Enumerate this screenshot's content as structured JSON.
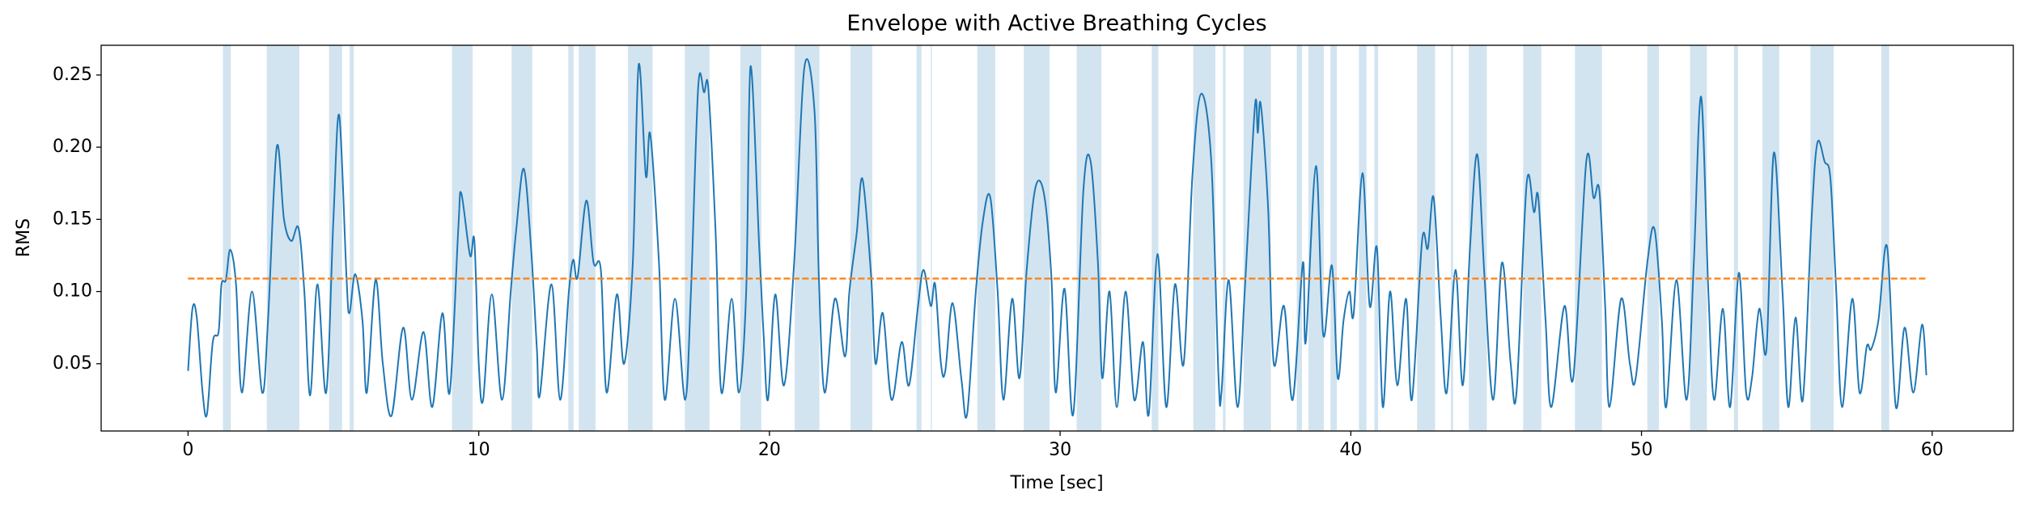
{
  "chart_data": {
    "type": "line",
    "title": "Envelope with Active Breathing Cycles",
    "x_label": "Time [sec]",
    "y_label": "RMS",
    "color": "#1f77b4",
    "x": [
      0.0,
      0.15,
      0.3,
      0.5,
      0.65,
      0.85,
      1.05,
      1.15,
      1.3,
      1.45,
      1.65,
      1.85,
      2.2,
      2.55,
      2.75,
      3.05,
      3.3,
      3.55,
      3.8,
      4.0,
      4.2,
      4.45,
      4.75,
      5.0,
      5.2,
      5.45,
      5.55,
      5.75,
      6.0,
      6.15,
      6.45,
      6.7,
      7.0,
      7.4,
      7.7,
      8.1,
      8.4,
      8.75,
      9.0,
      9.3,
      9.4,
      9.7,
      9.85,
      10.0,
      10.15,
      10.45,
      10.8,
      11.1,
      11.3,
      11.55,
      11.8,
      12.0,
      12.1,
      12.5,
      12.8,
      13.1,
      13.25,
      13.4,
      13.7,
      13.95,
      14.2,
      14.4,
      14.75,
      15.0,
      15.3,
      15.5,
      15.75,
      15.9,
      16.2,
      16.4,
      16.75,
      17.1,
      17.3,
      17.55,
      17.75,
      17.9,
      18.15,
      18.35,
      18.7,
      18.95,
      19.2,
      19.35,
      19.65,
      19.8,
      19.95,
      20.2,
      20.5,
      20.85,
      21.2,
      21.55,
      21.7,
      21.9,
      22.25,
      22.6,
      22.75,
      23.0,
      23.2,
      23.5,
      23.65,
      23.9,
      24.2,
      24.55,
      24.8,
      25.1,
      25.3,
      25.55,
      25.7,
      25.9,
      26.05,
      26.3,
      26.6,
      26.8,
      27.1,
      27.35,
      27.6,
      27.85,
      28.05,
      28.35,
      28.6,
      28.85,
      29.15,
      29.45,
      29.7,
      29.85,
      30.15,
      30.45,
      30.8,
      31.05,
      31.3,
      31.45,
      31.7,
      31.95,
      32.25,
      32.55,
      32.85,
      33.05,
      33.35,
      33.65,
      33.95,
      34.25,
      34.55,
      34.85,
      35.2,
      35.45,
      35.55,
      35.8,
      36.1,
      36.35,
      36.7,
      36.8,
      36.9,
      37.15,
      37.35,
      37.7,
      38.0,
      38.35,
      38.45,
      38.8,
      39.05,
      39.35,
      39.55,
      39.75,
      39.95,
      40.1,
      40.4,
      40.65,
      40.9,
      41.1,
      41.35,
      41.6,
      41.9,
      42.1,
      42.45,
      42.65,
      42.85,
      43.1,
      43.3,
      43.6,
      43.85,
      44.1,
      44.35,
      44.6,
      44.9,
      45.2,
      45.5,
      45.7,
      46.05,
      46.3,
      46.45,
      46.7,
      46.9,
      47.35,
      47.65,
      48.1,
      48.35,
      48.55,
      48.75,
      48.9,
      49.3,
      49.6,
      49.8,
      50.2,
      50.45,
      50.7,
      50.85,
      51.2,
      51.55,
      51.8,
      52.05,
      52.3,
      52.5,
      52.8,
      53.05,
      53.35,
      53.6,
      53.8,
      54.05,
      54.3,
      54.55,
      54.85,
      55.05,
      55.3,
      55.55,
      55.85,
      56.05,
      56.3,
      56.5,
      56.7,
      56.9,
      57.25,
      57.5,
      57.75,
      57.9,
      58.15,
      58.45,
      58.75,
      59.05,
      59.35,
      59.65,
      59.8
    ],
    "values": [
      0.045,
      0.088,
      0.082,
      0.03,
      0.015,
      0.065,
      0.072,
      0.105,
      0.108,
      0.129,
      0.105,
      0.03,
      0.1,
      0.03,
      0.08,
      0.2,
      0.15,
      0.135,
      0.144,
      0.1,
      0.028,
      0.105,
      0.03,
      0.15,
      0.222,
      0.11,
      0.085,
      0.112,
      0.08,
      0.03,
      0.108,
      0.05,
      0.014,
      0.075,
      0.025,
      0.072,
      0.02,
      0.085,
      0.03,
      0.145,
      0.168,
      0.125,
      0.135,
      0.05,
      0.025,
      0.098,
      0.025,
      0.1,
      0.145,
      0.185,
      0.13,
      0.06,
      0.028,
      0.105,
      0.025,
      0.1,
      0.122,
      0.11,
      0.163,
      0.12,
      0.115,
      0.03,
      0.098,
      0.05,
      0.12,
      0.257,
      0.18,
      0.209,
      0.12,
      0.025,
      0.095,
      0.025,
      0.1,
      0.242,
      0.238,
      0.24,
      0.14,
      0.03,
      0.095,
      0.03,
      0.1,
      0.256,
      0.13,
      0.07,
      0.025,
      0.098,
      0.035,
      0.12,
      0.255,
      0.225,
      0.11,
      0.03,
      0.095,
      0.055,
      0.1,
      0.14,
      0.178,
      0.11,
      0.05,
      0.085,
      0.025,
      0.065,
      0.035,
      0.088,
      0.115,
      0.09,
      0.105,
      0.05,
      0.045,
      0.092,
      0.04,
      0.015,
      0.1,
      0.15,
      0.165,
      0.1,
      0.025,
      0.095,
      0.04,
      0.115,
      0.172,
      0.167,
      0.11,
      0.03,
      0.102,
      0.015,
      0.17,
      0.19,
      0.12,
      0.04,
      0.1,
      0.02,
      0.1,
      0.025,
      0.065,
      0.015,
      0.126,
      0.02,
      0.105,
      0.05,
      0.18,
      0.237,
      0.19,
      0.04,
      0.03,
      0.108,
      0.02,
      0.1,
      0.228,
      0.21,
      0.23,
      0.16,
      0.05,
      0.09,
      0.025,
      0.12,
      0.065,
      0.187,
      0.07,
      0.118,
      0.04,
      0.08,
      0.1,
      0.085,
      0.182,
      0.09,
      0.13,
      0.02,
      0.1,
      0.035,
      0.095,
      0.025,
      0.135,
      0.13,
      0.165,
      0.08,
      0.03,
      0.115,
      0.035,
      0.13,
      0.195,
      0.11,
      0.025,
      0.12,
      0.05,
      0.03,
      0.175,
      0.155,
      0.165,
      0.08,
      0.02,
      0.09,
      0.04,
      0.19,
      0.165,
      0.17,
      0.09,
      0.02,
      0.095,
      0.05,
      0.04,
      0.12,
      0.143,
      0.08,
      0.02,
      0.108,
      0.025,
      0.12,
      0.235,
      0.1,
      0.025,
      0.088,
      0.02,
      0.113,
      0.03,
      0.04,
      0.088,
      0.06,
      0.196,
      0.1,
      0.02,
      0.082,
      0.025,
      0.15,
      0.203,
      0.19,
      0.178,
      0.1,
      0.02,
      0.095,
      0.03,
      0.062,
      0.06,
      0.08,
      0.131,
      0.02,
      0.075,
      0.03,
      0.077,
      0.042
    ],
    "threshold": 0.109,
    "threshold_color": "#ff7f0e",
    "span_color": "#1f77b4",
    "spans": [
      [
        1.2,
        1.47
      ],
      [
        2.71,
        3.83
      ],
      [
        4.85,
        5.3
      ],
      [
        5.56,
        5.7
      ],
      [
        9.08,
        9.79
      ],
      [
        11.13,
        11.84
      ],
      [
        13.08,
        13.26
      ],
      [
        13.44,
        14.02
      ],
      [
        15.13,
        15.98
      ],
      [
        17.09,
        17.94
      ],
      [
        19.0,
        19.72
      ],
      [
        20.87,
        21.72
      ],
      [
        22.79,
        23.54
      ],
      [
        25.06,
        25.23
      ],
      [
        25.55,
        25.59
      ],
      [
        27.15,
        27.77
      ],
      [
        28.75,
        29.64
      ],
      [
        30.57,
        31.42
      ],
      [
        33.15,
        33.38
      ],
      [
        34.58,
        35.34
      ],
      [
        35.6,
        35.69
      ],
      [
        36.31,
        37.25
      ],
      [
        38.14,
        38.32
      ],
      [
        38.54,
        39.07
      ],
      [
        39.3,
        39.52
      ],
      [
        40.28,
        40.54
      ],
      [
        40.81,
        40.94
      ],
      [
        42.28,
        42.9
      ],
      [
        43.44,
        43.52
      ],
      [
        44.06,
        44.68
      ],
      [
        45.93,
        46.55
      ],
      [
        47.71,
        48.64
      ],
      [
        50.2,
        50.6
      ],
      [
        51.67,
        52.25
      ],
      [
        53.18,
        53.32
      ],
      [
        54.16,
        54.74
      ],
      [
        55.81,
        56.61
      ],
      [
        58.25,
        58.52
      ]
    ],
    "xlim": [
      -2.99,
      62.79
    ],
    "xticks": [
      0,
      10,
      20,
      30,
      40,
      50,
      60
    ],
    "ylim": [
      0.0034,
      0.2706
    ],
    "yticks": [
      0.05,
      {
        "value": 0.1,
        "label": "0.10"
      },
      0.15,
      {
        "value": 0.2,
        "label": "0.20"
      },
      0.25
    ],
    "grid": false
  }
}
